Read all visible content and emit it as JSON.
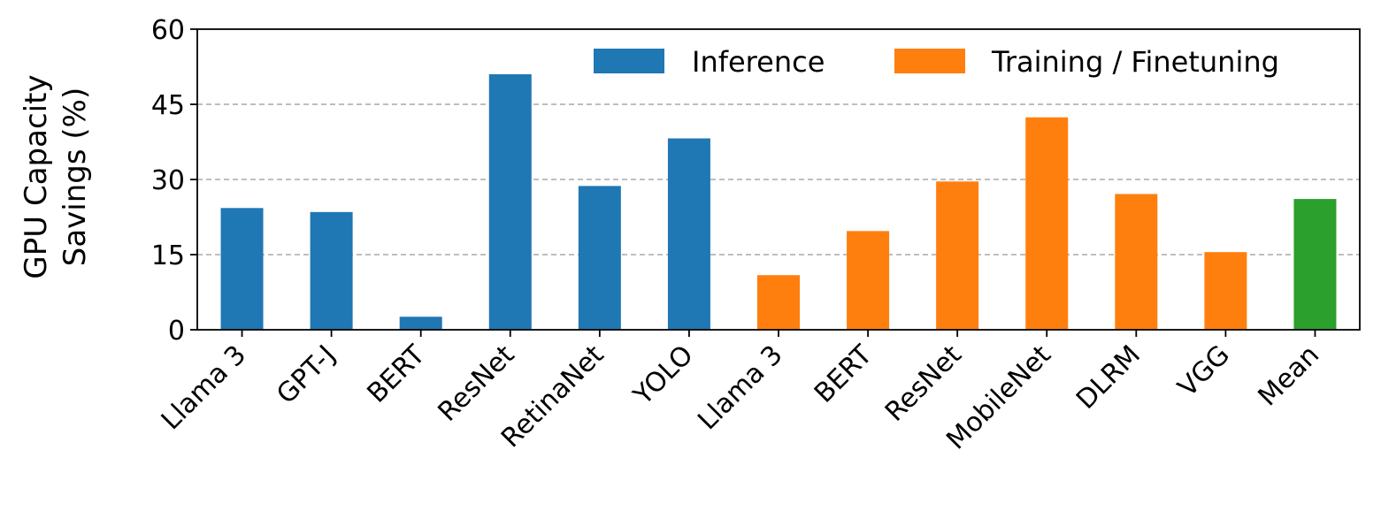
{
  "chart_data": {
    "type": "bar",
    "title": "",
    "xlabel": "",
    "ylabel_lines": [
      "GPU Capacity",
      "Savings (%)"
    ],
    "ylim": [
      0,
      60
    ],
    "yticks": [
      0,
      15,
      30,
      45,
      60
    ],
    "grid": "horizontal dashed at 15, 30, 45",
    "categories": [
      "Llama 3",
      "GPT-J",
      "BERT",
      "ResNet",
      "RetinaNet",
      "YOLO",
      "Llama 3",
      "BERT",
      "ResNet",
      "MobileNet",
      "DLRM",
      "VGG",
      "Mean"
    ],
    "values": [
      24.3,
      23.5,
      2.6,
      51.0,
      28.7,
      38.2,
      10.9,
      19.7,
      29.6,
      42.4,
      27.1,
      15.5,
      26.1
    ],
    "groups": [
      "Inference",
      "Inference",
      "Inference",
      "Inference",
      "Inference",
      "Inference",
      "Training / Finetuning",
      "Training / Finetuning",
      "Training / Finetuning",
      "Training / Finetuning",
      "Training / Finetuning",
      "Training / Finetuning",
      "Mean"
    ],
    "colors": {
      "Inference": "#1f77b4",
      "Training / Finetuning": "#ff7f0e",
      "Mean": "#2ca02c"
    },
    "legend": {
      "placement": "top-right",
      "entries": [
        "Inference",
        "Training / Finetuning"
      ]
    }
  }
}
